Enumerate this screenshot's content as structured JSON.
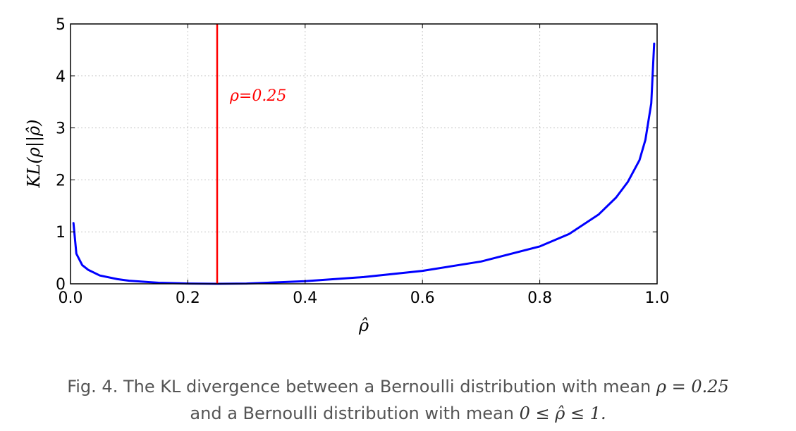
{
  "chart_data": {
    "type": "line",
    "xlabel": "ρ̂",
    "ylabel": "KL(ρ||ρ̂)",
    "xlim": [
      0.0,
      1.0
    ],
    "ylim": [
      0,
      5
    ],
    "x_ticks": [
      "0.0",
      "0.2",
      "0.4",
      "0.6",
      "0.8",
      "1.0"
    ],
    "y_ticks": [
      "0",
      "1",
      "2",
      "3",
      "4",
      "5"
    ],
    "grid": true,
    "series": [
      {
        "color": "#0000ff",
        "x": [
          0.005,
          0.01,
          0.02,
          0.03,
          0.05,
          0.08,
          0.1,
          0.15,
          0.2,
          0.25,
          0.3,
          0.4,
          0.5,
          0.6,
          0.7,
          0.8,
          0.85,
          0.9,
          0.93,
          0.95,
          0.97,
          0.98,
          0.99,
          0.995
        ],
        "y": [
          1.17,
          0.58,
          0.36,
          0.27,
          0.16,
          0.09,
          0.06,
          0.02,
          0.005,
          0.0,
          0.006,
          0.05,
          0.13,
          0.25,
          0.43,
          0.72,
          0.96,
          1.33,
          1.66,
          1.96,
          2.38,
          2.77,
          3.47,
          4.62
        ]
      }
    ],
    "annotations": [
      {
        "type": "vline",
        "x": 0.25,
        "color": "#ff0000",
        "label": "ρ=0.25"
      }
    ]
  },
  "caption": {
    "line1_prefix": "Fig. 4. The KL divergence between a Bernoulli distribution with mean ",
    "line1_math": "ρ = 0.25",
    "line2_prefix": "and a Bernoulli distribution with mean ",
    "line2_math": "0 ≤ ρ̂ ≤ 1."
  },
  "colors": {
    "curve": "#0000ff",
    "vline": "#ff0000",
    "caption_text": "#555555"
  }
}
